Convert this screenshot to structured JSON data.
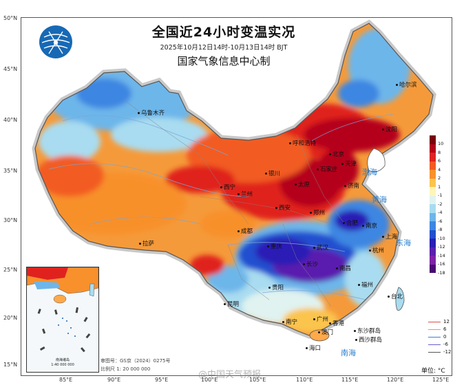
{
  "title": "全国近24小时变温实况",
  "subtitle": "2025年10月12日14时-10月13日14时 BJT",
  "organization": "国家气象信息中心制",
  "lat_ticks": [
    "50°N",
    "45°N",
    "40°N",
    "35°N",
    "30°N",
    "25°N",
    "20°N",
    "15°N"
  ],
  "lon_ticks": [
    "85°E",
    "90°E",
    "95°E",
    "100°E",
    "105°E",
    "110°E",
    "115°E",
    "120°E",
    "125°E"
  ],
  "cities": [
    "哈尔滨",
    "乌鲁木齐",
    "呼和浩特",
    "北京",
    "天津",
    "沈阳",
    "石家庄",
    "太原",
    "济南",
    "西宁",
    "兰州",
    "银川",
    "西安",
    "郑州",
    "合肥",
    "南京",
    "上海",
    "杭州",
    "武汉",
    "长沙",
    "南昌",
    "福州",
    "台北",
    "成都",
    "重庆",
    "贵阳",
    "昆明",
    "南宁",
    "广州",
    "香港",
    "澳门",
    "海口",
    "拉萨",
    "东沙群岛",
    "西沙群岛"
  ],
  "seas": [
    "渤海",
    "黄海",
    "东海",
    "南海"
  ],
  "legend": {
    "unit": "单位: °C",
    "labels": [
      "10",
      "8",
      "6",
      "4",
      "2",
      "1",
      "-1",
      "-2",
      "-4",
      "-6",
      "-8",
      "-10",
      "-12",
      "-14",
      "-16",
      "-18"
    ],
    "colors": [
      "#7a0012",
      "#b5001c",
      "#e0221f",
      "#f25b20",
      "#f8902c",
      "#fbc44e",
      "#fff5b8",
      "#e0f3f0",
      "#a9dcf0",
      "#6db6ea",
      "#3d86e2",
      "#2150cf",
      "#2a1eb5",
      "#5a1fae",
      "#7e22a8",
      "#4a0a70"
    ],
    "line_labels": [
      "12",
      "6",
      "0",
      "-6",
      "-12"
    ],
    "line_colors": [
      "#e04a4a",
      "#ff8a5a",
      "#3a7bd5",
      "#6a5acd",
      "#555555"
    ]
  },
  "inset": {
    "caption_line1": "南海诸岛",
    "caption_line2": "1:40 000 000"
  },
  "map_number": "审图号：GS京（2024）0275号",
  "scale": "比例尺 1: 20 000 000",
  "watermark": "@中国天气预报"
}
